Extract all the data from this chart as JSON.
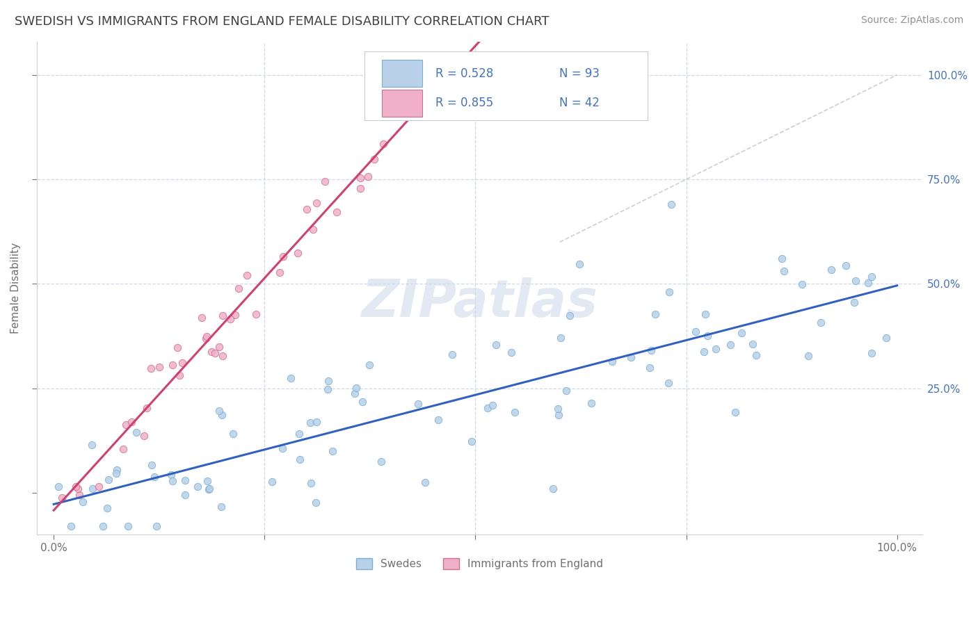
{
  "title": "SWEDISH VS IMMIGRANTS FROM ENGLAND FEMALE DISABILITY CORRELATION CHART",
  "source": "Source: ZipAtlas.com",
  "ylabel": "Female Disability",
  "background_color": "#ffffff",
  "grid_color": "#d0d8e8",
  "swedes_color": "#b8d0e8",
  "swedes_edge_color": "#7aafd4",
  "immigrants_color": "#f0b0c8",
  "immigrants_edge_color": "#d07090",
  "trend_swedes_color": "#3060c0",
  "trend_immigrants_color": "#d04070",
  "watermark_color": "#ccd8e8",
  "legend_r_swedes": "R = 0.528",
  "legend_n_swedes": "N = 93",
  "legend_r_immigrants": "R = 0.855",
  "legend_n_immigrants": "N = 42",
  "title_color": "#404040",
  "axis_label_color": "#707070",
  "tick_color": "#707070",
  "r_color": "#4472c4",
  "n_color": "#202020",
  "swedes_slope": 0.55,
  "swedes_intercept": -5.0,
  "immigrants_slope": 2.1,
  "immigrants_intercept": -2.0,
  "seed_swedes": 42,
  "seed_immigrants": 7
}
